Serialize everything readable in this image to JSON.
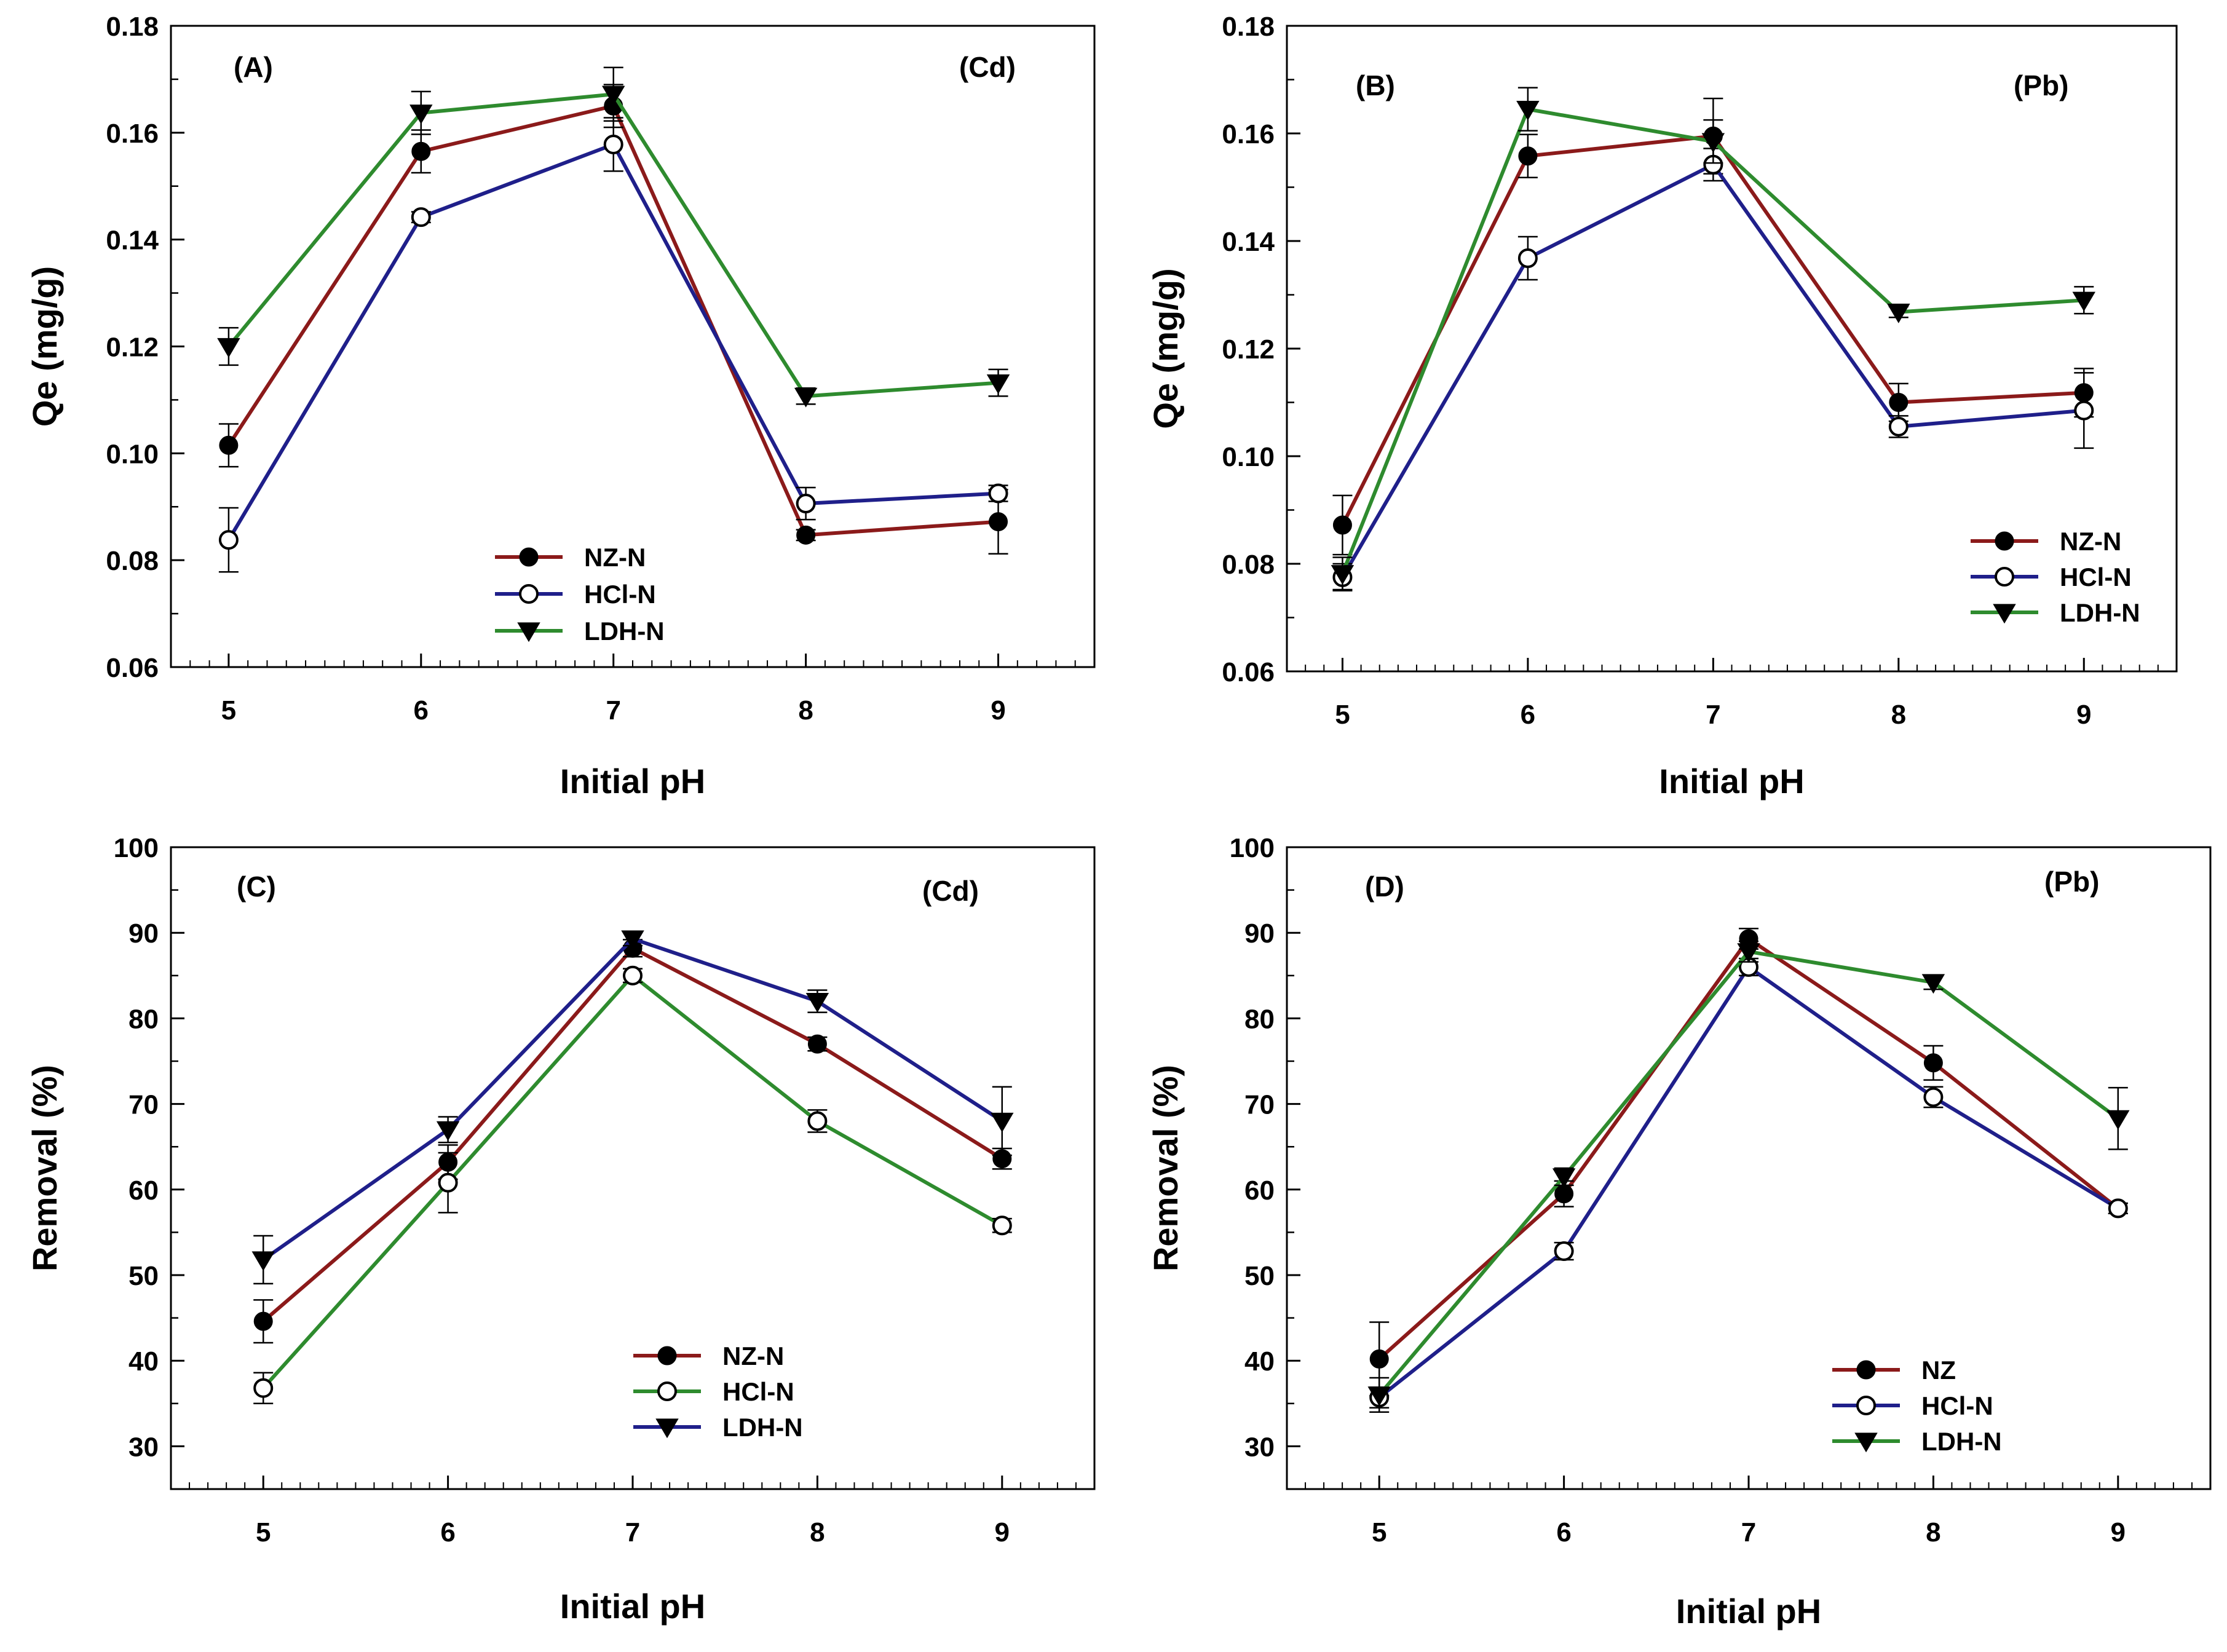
{
  "chart_data": [
    {
      "type": "line",
      "panel_label": "(A)",
      "metal_label": "(Cd)",
      "xlabel": "Initial pH",
      "ylabel": "Qe (mg/g)",
      "xlim": [
        4.7,
        9.5
      ],
      "ylim": [
        0.06,
        0.18
      ],
      "yticks": [
        "0.06",
        "0.08",
        "0.10",
        "0.12",
        "0.14",
        "0.16",
        "0.18"
      ],
      "xticks": [
        "5",
        "6",
        "7",
        "8",
        "9"
      ],
      "legend_position": "bottom-center",
      "series": [
        {
          "name": "NZ-N",
          "color": "#8b1a1a",
          "marker": "filled-circle",
          "x": [
            5,
            6,
            7,
            8,
            9
          ],
          "values": [
            0.1015,
            0.1565,
            0.165,
            0.0847,
            0.0872
          ],
          "errors": [
            0.004,
            0.004,
            0.004,
            0.001,
            0.006
          ]
        },
        {
          "name": "HCl-N",
          "color": "#1f1f8a",
          "marker": "open-circle",
          "x": [
            5,
            6,
            7,
            8,
            9
          ],
          "values": [
            0.0838,
            0.1442,
            0.1578,
            0.0906,
            0.0925
          ],
          "errors": [
            0.006,
            0.001,
            0.005,
            0.003,
            0.0015
          ]
        },
        {
          "name": "LDH-N",
          "color": "#2e8b2e",
          "marker": "filled-triangle-down",
          "x": [
            5,
            6,
            7,
            8,
            9
          ],
          "values": [
            0.12,
            0.1637,
            0.1672,
            0.1107,
            0.1132
          ],
          "errors": [
            0.0035,
            0.004,
            0.005,
            0.0015,
            0.0025
          ]
        }
      ]
    },
    {
      "type": "line",
      "panel_label": "(B)",
      "metal_label": "(Pb)",
      "xlabel": "Initial pH",
      "ylabel": "Qe (mg/g)",
      "xlim": [
        4.7,
        9.5
      ],
      "ylim": [
        0.06,
        0.18
      ],
      "yticks": [
        "0.06",
        "0.08",
        "0.10",
        "0.12",
        "0.14",
        "0.16",
        "0.18"
      ],
      "xticks": [
        "5",
        "6",
        "7",
        "8",
        "9"
      ],
      "legend_position": "right-middle",
      "series": [
        {
          "name": "NZ-N",
          "color": "#8b1a1a",
          "marker": "filled-circle",
          "x": [
            5,
            6,
            7,
            8,
            9
          ],
          "values": [
            0.0872,
            0.1558,
            0.1595,
            0.11,
            0.1118
          ],
          "errors": [
            0.0055,
            0.004,
            0.007,
            0.0035,
            0.0045
          ]
        },
        {
          "name": "HCl-N",
          "color": "#1f1f8a",
          "marker": "open-circle",
          "x": [
            5,
            6,
            7,
            8,
            9
          ],
          "values": [
            0.0775,
            0.1368,
            0.1542,
            0.1055,
            0.1085
          ],
          "errors": [
            0.0025,
            0.004,
            0.003,
            0.002,
            0.007
          ]
        },
        {
          "name": "LDH-N",
          "color": "#2e8b2e",
          "marker": "filled-triangle-down",
          "x": [
            5,
            6,
            7,
            8,
            9
          ],
          "values": [
            0.0782,
            0.1645,
            0.1585,
            0.1268,
            0.129
          ],
          "errors": [
            0.003,
            0.004,
            0.004,
            0.001,
            0.0025
          ]
        }
      ]
    },
    {
      "type": "line",
      "panel_label": "(C)",
      "metal_label": "(Cd)",
      "xlabel": "Initial pH",
      "ylabel": "Removal (%)",
      "xlim": [
        4.5,
        9.5
      ],
      "ylim": [
        25,
        100
      ],
      "yticks": [
        "30",
        "40",
        "50",
        "60",
        "70",
        "80",
        "90",
        "100"
      ],
      "xticks": [
        "5",
        "6",
        "7",
        "8",
        "9"
      ],
      "legend_position": "bottom-center",
      "series": [
        {
          "name": "NZ-N",
          "color": "#8b1a1a",
          "marker": "filled-circle",
          "x": [
            5,
            6,
            7,
            8,
            9
          ],
          "values": [
            44.6,
            63.2,
            88.2,
            77.0,
            63.6
          ],
          "errors": [
            2.5,
            2.0,
            1.0,
            0.8,
            1.2
          ]
        },
        {
          "name": "HCl-N",
          "color": "#2e8b2e",
          "marker": "open-circle",
          "x": [
            5,
            6,
            7,
            8,
            9
          ],
          "values": [
            36.8,
            60.8,
            85.0,
            68.0,
            55.8
          ],
          "errors": [
            1.8,
            3.5,
            0.8,
            1.3,
            0.8
          ]
        },
        {
          "name": "LDH-N",
          "color": "#1f1f8a",
          "marker": "filled-triangle-down",
          "x": [
            5,
            6,
            7,
            8,
            9
          ],
          "values": [
            51.8,
            67.0,
            89.3,
            82.0,
            68.0
          ],
          "errors": [
            2.8,
            1.5,
            0.8,
            1.3,
            4.0
          ]
        }
      ]
    },
    {
      "type": "line",
      "panel_label": "(D)",
      "metal_label": "(Pb)",
      "xlabel": "Initial pH",
      "ylabel": "Removal (%)",
      "xlim": [
        4.5,
        9.5
      ],
      "ylim": [
        25,
        100
      ],
      "yticks": [
        "30",
        "40",
        "50",
        "60",
        "70",
        "80",
        "90",
        "100"
      ],
      "xticks": [
        "5",
        "6",
        "7",
        "8",
        "9"
      ],
      "legend_position": "bottom-right",
      "series": [
        {
          "name": "NZ",
          "color": "#8b1a1a",
          "marker": "filled-circle",
          "x": [
            5,
            6,
            7,
            8,
            9
          ],
          "values": [
            40.2,
            59.5,
            89.3,
            74.8,
            57.8
          ],
          "errors": [
            4.3,
            1.5,
            1.2,
            2.0,
            0.6
          ]
        },
        {
          "name": "HCl-N",
          "color": "#1f1f8a",
          "marker": "open-circle",
          "x": [
            5,
            6,
            7,
            8,
            9
          ],
          "values": [
            35.7,
            52.8,
            86.0,
            70.8,
            57.8
          ],
          "errors": [
            1.2,
            1.0,
            1.0,
            1.2,
            0.6
          ]
        },
        {
          "name": "LDH-N",
          "color": "#2e8b2e",
          "marker": "filled-triangle-down",
          "x": [
            5,
            6,
            7,
            8,
            9
          ],
          "values": [
            36.0,
            61.5,
            87.8,
            84.2,
            68.3
          ],
          "errors": [
            2.0,
            1.0,
            1.2,
            0.8,
            3.6
          ]
        }
      ]
    }
  ]
}
